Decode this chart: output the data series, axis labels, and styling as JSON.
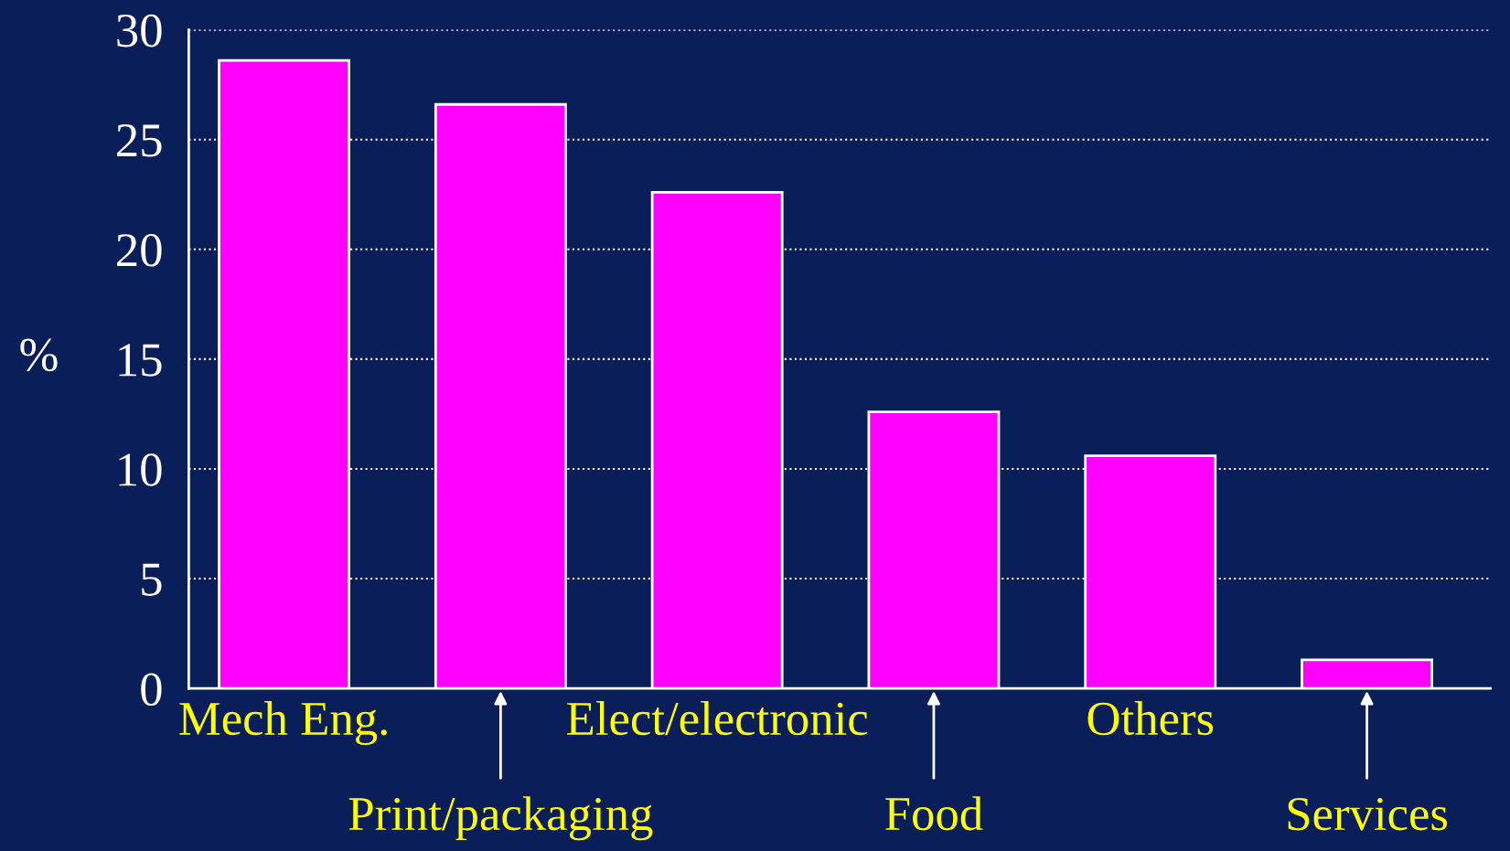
{
  "chart_data": {
    "type": "bar",
    "ylabel": "%",
    "categories": [
      "Mech Eng.",
      "Print/packaging",
      "Elect/electronic",
      "Food",
      "Others",
      "Services"
    ],
    "values": [
      28.6,
      26.6,
      22.6,
      12.6,
      10.6,
      1.3
    ],
    "color": "#ff00ff",
    "ylim": [
      0,
      30
    ],
    "yticks": [
      0,
      5,
      10,
      15,
      20,
      25,
      30
    ],
    "grid": "y"
  }
}
